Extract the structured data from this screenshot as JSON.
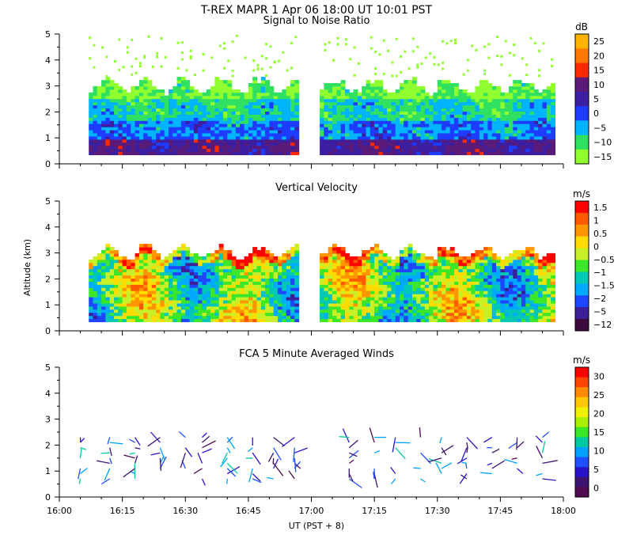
{
  "header": {
    "title": "T-REX   MAPR   1 Apr 06   18:00 UT   10:01   PST"
  },
  "x_axis": {
    "label": "UT  (PST + 8)",
    "tick_labels": [
      "16:00",
      "16:15",
      "16:30",
      "16:45",
      "17:00",
      "17:15",
      "17:30",
      "17:45",
      "18:00"
    ],
    "range_minutes": [
      0,
      120
    ]
  },
  "y_axis": {
    "label": "Altitude (km)",
    "tick_labels": [
      "0",
      "1",
      "2",
      "3",
      "4",
      "5"
    ],
    "range_km": [
      0,
      5
    ]
  },
  "chart_data": [
    {
      "type": "heatmap",
      "title": "Signal to Noise Ratio",
      "colorbar_unit": "dB",
      "colorbar_labels": [
        "25",
        "20",
        "15",
        "10",
        "5",
        "0",
        "−5",
        "−10",
        "−15"
      ],
      "colorbar_colors": [
        "#ffb400",
        "#ff7800",
        "#ff2a00",
        "#5a1a78",
        "#3c1ea0",
        "#1e3cff",
        "#00b4ff",
        "#30e060",
        "#90ff30"
      ],
      "ylim": [
        0,
        5
      ],
      "data_gap_minutes": [
        57,
        62
      ]
    },
    {
      "type": "heatmap",
      "title": "Vertical Velocity",
      "colorbar_unit": "m/s",
      "colorbar_labels": [
        "1.5",
        "1",
        "0.5",
        "0",
        "−0.5",
        "−1",
        "−1.5",
        "−2",
        "−5",
        "−12"
      ],
      "colorbar_colors": [
        "#ff0000",
        "#ff5a00",
        "#ff9600",
        "#ffdc00",
        "#c8f028",
        "#3ce628",
        "#00c8b4",
        "#00aaff",
        "#1e46ff",
        "#3c1e96",
        "#3c0a3c"
      ],
      "ylim": [
        0,
        5
      ],
      "data_gap_minutes": [
        57,
        62
      ]
    },
    {
      "type": "scatter",
      "title": "FCA 5 Minute Averaged Winds",
      "colorbar_unit": "m/s",
      "colorbar_labels": [
        "30",
        "25",
        "20",
        "15",
        "10",
        "5",
        "0"
      ],
      "colorbar_colors": [
        "#ff0000",
        "#ff4600",
        "#ff8c00",
        "#ffc800",
        "#f0f000",
        "#aaf000",
        "#3ce628",
        "#00c8a0",
        "#00a0ff",
        "#1e50ff",
        "#2814c8",
        "#3c1470",
        "#500a50"
      ],
      "ylim": [
        0,
        5
      ],
      "profile_times_minutes": [
        5,
        12,
        18,
        24,
        30,
        34,
        40,
        46,
        51,
        56,
        69,
        75,
        80,
        86,
        91,
        97,
        103,
        109,
        115
      ]
    }
  ]
}
